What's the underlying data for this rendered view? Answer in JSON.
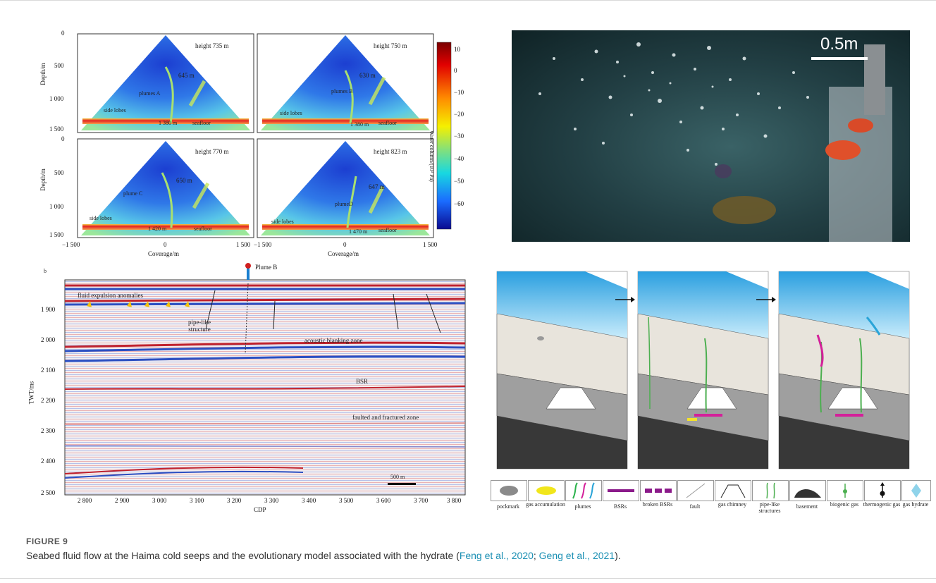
{
  "figure": {
    "label": "FIGURE 9",
    "caption_prefix": "Seabed fluid flow at the Haima cold seeps and the evolutionary model associated with the hydrate (",
    "cite1": "Feng et al., 2020",
    "cite_sep": "; ",
    "cite2": "Geng et al., 2021",
    "caption_suffix": ")."
  },
  "watercolumn": {
    "ylabel": "Depth/m",
    "xlabel": "Coverage/m",
    "yticks": [
      "0",
      "500",
      "1 000",
      "1 500"
    ],
    "xticks_left": [
      "−1 500",
      "0",
      "1 500"
    ],
    "xticks_right": [
      "−1 500",
      "0",
      "1 500"
    ],
    "colorbar_label": "Water column/(10³ Pa)",
    "colorbar_ticks": [
      "10",
      "0",
      "−10",
      "−20",
      "−30",
      "−40",
      "−50",
      "−60"
    ],
    "panels": [
      {
        "height": "height 735 m",
        "plume": "plumes A",
        "peak": "645 m",
        "seafloor_depth": "1 380 m",
        "side": "side lobes",
        "seafloor": "seafloor"
      },
      {
        "height": "height 750 m",
        "plume": "plumes B",
        "peak": "630 m",
        "seafloor_depth": "1 380 m",
        "side": "side lobes",
        "seafloor": "seafloor"
      },
      {
        "height": "height 770 m",
        "plume": "plume C",
        "peak": "650 m",
        "seafloor_depth": "1 420 m",
        "side": "side lobes",
        "seafloor": "seafloor"
      },
      {
        "height": "height 823 m",
        "plume": "plumeD",
        "peak": "647 m",
        "seafloor_depth": "1 470 m",
        "side": "side lobes",
        "seafloor": "seafloor"
      }
    ]
  },
  "photo": {
    "scale_label": "0.5m"
  },
  "seismic": {
    "corner": "b",
    "plume_label": "Plume B",
    "ylabel": "TWT/ms",
    "xlabel": "CDP",
    "yticks": [
      "1 900",
      "2 000",
      "2 100",
      "2 200",
      "2 300",
      "2 400",
      "2 500"
    ],
    "xticks": [
      "2 800",
      "2 900",
      "3 000",
      "3 100",
      "3 200",
      "3 300",
      "3 400",
      "3 500",
      "3 600",
      "3 700",
      "3 800"
    ],
    "annotations": {
      "fluid": "fluid expulsion anomalies",
      "pipe": "pipe-like structure",
      "blanking": "acoustic blanking zone",
      "bsr": "BSR",
      "faulted": "faulted and fractured zone",
      "scale": "500 m"
    }
  },
  "legend": [
    {
      "key": "pockmark",
      "label": "pockmark"
    },
    {
      "key": "gas-accumulation",
      "label": "gas accumulation"
    },
    {
      "key": "plumes",
      "label": "plumes"
    },
    {
      "key": "bsrs",
      "label": "BSRs"
    },
    {
      "key": "broken-bsrs",
      "label": "broken BSRs"
    },
    {
      "key": "fault",
      "label": "fault"
    },
    {
      "key": "gas-chimney",
      "label": "gas chimney"
    },
    {
      "key": "pipe-like",
      "label": "pipe-like structures"
    },
    {
      "key": "basement",
      "label": "basement"
    },
    {
      "key": "biogenic",
      "label": "biogenic gas"
    },
    {
      "key": "thermogenic",
      "label": "thermogenic gas"
    },
    {
      "key": "hydrate",
      "label": "gas hydrate"
    }
  ]
}
